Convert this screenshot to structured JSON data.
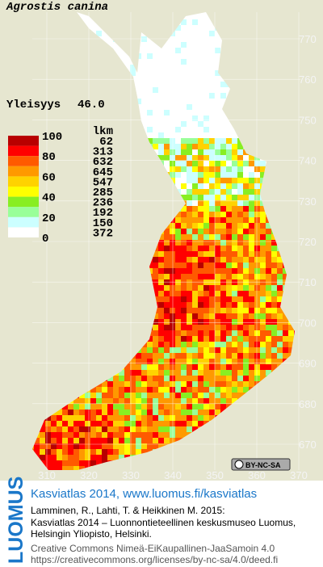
{
  "header": {
    "title": "Agrostis canina",
    "frequency_label": "Yleisyys",
    "frequency_value": "46.0"
  },
  "legend": {
    "scale_labels": [
      "100",
      "80",
      "60",
      "40",
      "20",
      "0"
    ],
    "count_header": "lkm",
    "colors": [
      "#b80000",
      "#ff0000",
      "#ff5a00",
      "#ff9900",
      "#ffd200",
      "#ffff00",
      "#88ee22",
      "#99ff99",
      "#ccffff",
      "#ffffff"
    ],
    "counts": [
      "62",
      "313",
      "632",
      "645",
      "547",
      "285",
      "236",
      "192",
      "150",
      "372"
    ]
  },
  "grid": {
    "y_labels": [
      "770",
      "760",
      "750",
      "740",
      "730",
      "720",
      "710",
      "700",
      "690",
      "680",
      "670"
    ],
    "x_labels": [
      "310",
      "320",
      "330",
      "340",
      "350",
      "360",
      "370"
    ]
  },
  "license_badge": "BY-NC-SA",
  "footer": {
    "logo": "LUOMUS",
    "link": "Kasviatlas 2014, www.luomus.fi/kasviatlas",
    "citation": [
      "Lamminen, R., Lahti, T. & Heikkinen M. 2015:",
      "Kasviatlas 2014 – Luonnontieteellinen keskusmuseo Luomus,",
      "Helsingin Yliopisto, Helsinki."
    ],
    "license": [
      "Creative Commons Nimeä-EiKaupallinen-JaaSamoin 4.0",
      "https://creativecommons.org/licenses/by-nc-sa/4.0/deed.fi"
    ]
  }
}
